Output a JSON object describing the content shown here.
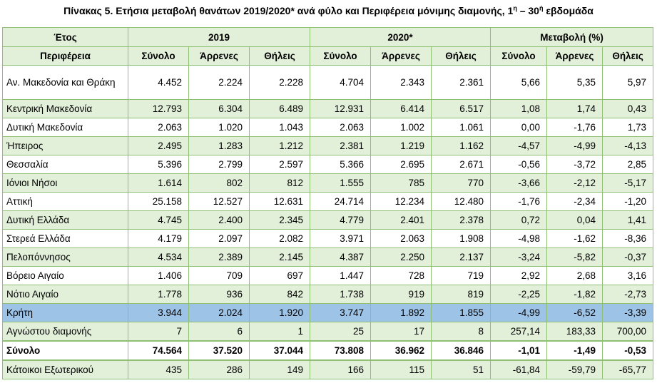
{
  "title": "Πίνακας 5. Ετήσια μεταβολή θανάτων 2019/2020* ανά φύλο και Περιφέρεια μόνιμης διαμονής, 1",
  "title_sup1": "η",
  "title_mid": " – 30",
  "title_sup2": "ή",
  "title_end": " εβδομάδα",
  "header": {
    "year_label": "Έτος",
    "group_2019": "2019",
    "group_2020": "2020*",
    "group_change": "Μεταβολή (%)",
    "region_label": "Περιφέρεια",
    "sub": [
      "Σύνολο",
      "Άρρενες",
      "Θήλεις",
      "Σύνολο",
      "Άρρενες",
      "Θήλεις",
      "Σύνολο",
      "Άρρενες",
      "Θήλεις"
    ]
  },
  "rows": [
    {
      "name": "Αν. Μακεδονία και Θράκη",
      "values": [
        "4.452",
        "2.224",
        "2.228",
        "4.704",
        "2.343",
        "2.361",
        "5,66",
        "5,35",
        "5,97"
      ]
    },
    {
      "name": "Κεντρική Μακεδονία",
      "values": [
        "12.793",
        "6.304",
        "6.489",
        "12.931",
        "6.414",
        "6.517",
        "1,08",
        "1,74",
        "0,43"
      ]
    },
    {
      "name": "Δυτική Μακεδονία",
      "values": [
        "2.063",
        "1.020",
        "1.043",
        "2.063",
        "1.002",
        "1.061",
        "0,00",
        "-1,76",
        "1,73"
      ]
    },
    {
      "name": "Ήπειρος",
      "values": [
        "2.495",
        "1.283",
        "1.212",
        "2.381",
        "1.219",
        "1.162",
        "-4,57",
        "-4,99",
        "-4,13"
      ]
    },
    {
      "name": "Θεσσαλία",
      "values": [
        "5.396",
        "2.799",
        "2.597",
        "5.366",
        "2.695",
        "2.671",
        "-0,56",
        "-3,72",
        "2,85"
      ]
    },
    {
      "name": "Ιόνιοι Νήσοι",
      "values": [
        "1.614",
        "802",
        "812",
        "1.555",
        "785",
        "770",
        "-3,66",
        "-2,12",
        "-5,17"
      ]
    },
    {
      "name": "Αττική",
      "values": [
        "25.158",
        "12.527",
        "12.631",
        "24.714",
        "12.234",
        "12.480",
        "-1,76",
        "-2,34",
        "-1,20"
      ]
    },
    {
      "name": "Δυτική Ελλάδα",
      "values": [
        "4.745",
        "2.400",
        "2.345",
        "4.779",
        "2.401",
        "2.378",
        "0,72",
        "0,04",
        "1,41"
      ]
    },
    {
      "name": "Στερεά Ελλάδα",
      "values": [
        "4.179",
        "2.097",
        "2.082",
        "3.971",
        "2.063",
        "1.908",
        "-4,98",
        "-1,62",
        "-8,36"
      ]
    },
    {
      "name": "Πελοπόννησος",
      "values": [
        "4.534",
        "2.389",
        "2.145",
        "4.387",
        "2.250",
        "2.137",
        "-3,24",
        "-5,82",
        "-0,37"
      ]
    },
    {
      "name": "Βόρειο Αιγαίο",
      "values": [
        "1.406",
        "709",
        "697",
        "1.447",
        "728",
        "719",
        "2,92",
        "2,68",
        "3,16"
      ]
    },
    {
      "name": "Νότιο Αιγαίο",
      "values": [
        "1.778",
        "936",
        "842",
        "1.738",
        "919",
        "819",
        "-2,25",
        "-1,82",
        "-2,73"
      ]
    },
    {
      "name": "Κρήτη",
      "values": [
        "3.944",
        "2.024",
        "1.920",
        "3.747",
        "1.892",
        "1.855",
        "-4,99",
        "-6,52",
        "-3,39"
      ]
    },
    {
      "name": "Αγνώστου διαμονής",
      "values": [
        "7",
        "6",
        "1",
        "25",
        "17",
        "8",
        "257,14",
        "183,33",
        "700,00"
      ]
    },
    {
      "name": "Σύνολο",
      "values": [
        "74.564",
        "37.520",
        "37.044",
        "73.808",
        "36.962",
        "36.846",
        "-1,01",
        "-1,49",
        "-0,53"
      ]
    },
    {
      "name": "Κάτοικοι Εξωτερικού",
      "values": [
        "435",
        "286",
        "149",
        "166",
        "115",
        "51",
        "-61,84",
        "-59,79",
        "-65,77"
      ]
    }
  ],
  "colors": {
    "header_fill": "#e2efd9",
    "stripe_fill": "#e2efd9",
    "highlight_fill": "#9dc3e6",
    "border": "#8fbf73"
  }
}
